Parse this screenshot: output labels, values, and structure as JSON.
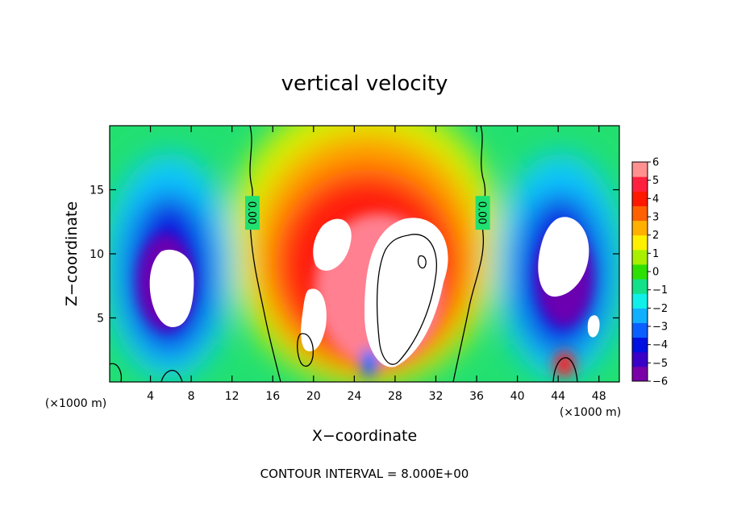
{
  "chart_data": {
    "type": "heatmap",
    "title": "vertical velocity",
    "xlabel": "X−coordinate",
    "ylabel": "Z−coordinate",
    "x_unit_left": "(×1000 m)",
    "x_unit_right": "(×1000 m)",
    "xlim": [
      0,
      50
    ],
    "ylim": [
      0,
      20
    ],
    "x_ticks": [
      {
        "value": 4,
        "label": "4"
      },
      {
        "value": 8,
        "label": "8"
      },
      {
        "value": 12,
        "label": "12"
      },
      {
        "value": 16,
        "label": "16"
      },
      {
        "value": 20,
        "label": "20"
      },
      {
        "value": 24,
        "label": "24"
      },
      {
        "value": 28,
        "label": "28"
      },
      {
        "value": 32,
        "label": "32"
      },
      {
        "value": 36,
        "label": "36"
      },
      {
        "value": 40,
        "label": "40"
      },
      {
        "value": 44,
        "label": "44"
      },
      {
        "value": 48,
        "label": "48"
      }
    ],
    "y_ticks": [
      {
        "value": 5,
        "label": "5"
      },
      {
        "value": 10,
        "label": "10"
      },
      {
        "value": 15,
        "label": "15"
      }
    ],
    "colorbar": {
      "min": -6,
      "max": 6,
      "tick_labels": [
        "6",
        "5",
        "4",
        "3",
        "2",
        "1",
        "0",
        "−1",
        "−2",
        "−3",
        "−4",
        "−5",
        "−6"
      ],
      "colors": [
        "#7a00a8",
        "#3a00c8",
        "#0010e0",
        "#0a60ff",
        "#10b0ff",
        "#10f0e8",
        "#14e08a",
        "#2ee000",
        "#a8f000",
        "#fff000",
        "#ffb000",
        "#ff6000",
        "#ff1800",
        "#ff2040",
        "#ff9090"
      ]
    },
    "contour_labels": [
      {
        "text": "0.00",
        "x": 14.0,
        "z": 13.2
      },
      {
        "text": "0.00",
        "x": 36.6,
        "z": 13.2
      }
    ],
    "footnote": "CONTOUR INTERVAL = 8.000E+00"
  }
}
